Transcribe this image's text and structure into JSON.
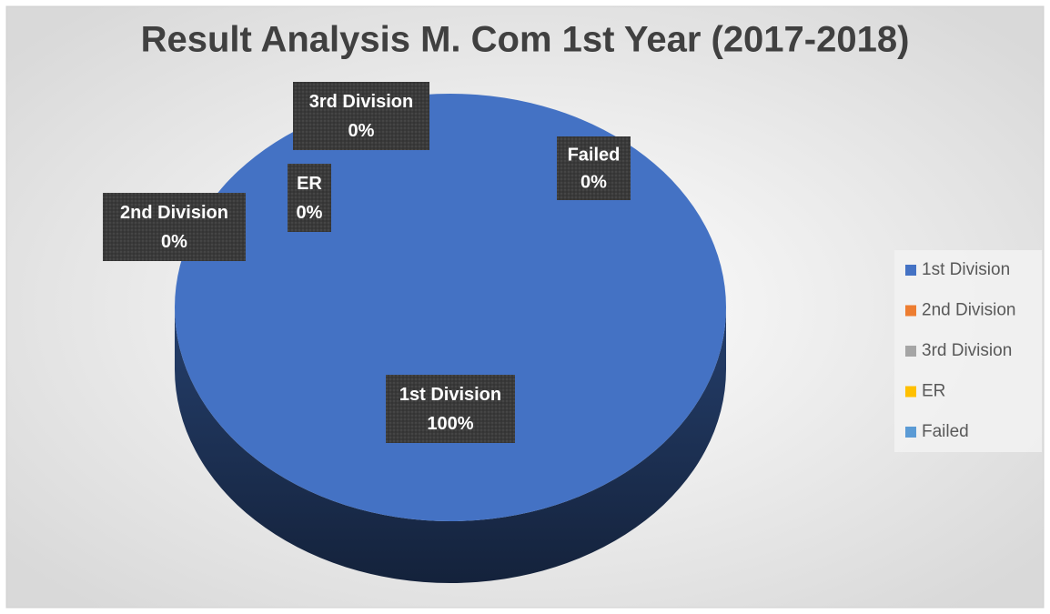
{
  "chart_data": {
    "type": "pie",
    "title": "Result Analysis M. Com 1st Year (2017-2018)",
    "categories": [
      "1st Division",
      "2nd Division",
      "3rd Division",
      "ER",
      "Failed"
    ],
    "values": [
      100,
      0,
      0,
      0,
      0
    ],
    "value_labels": [
      "100%",
      "0%",
      "0%",
      "0%",
      "0%"
    ],
    "colors": [
      "#4472c4",
      "#ed7d31",
      "#a5a5a5",
      "#ffc000",
      "#5b9bd5"
    ],
    "legend": "right"
  }
}
